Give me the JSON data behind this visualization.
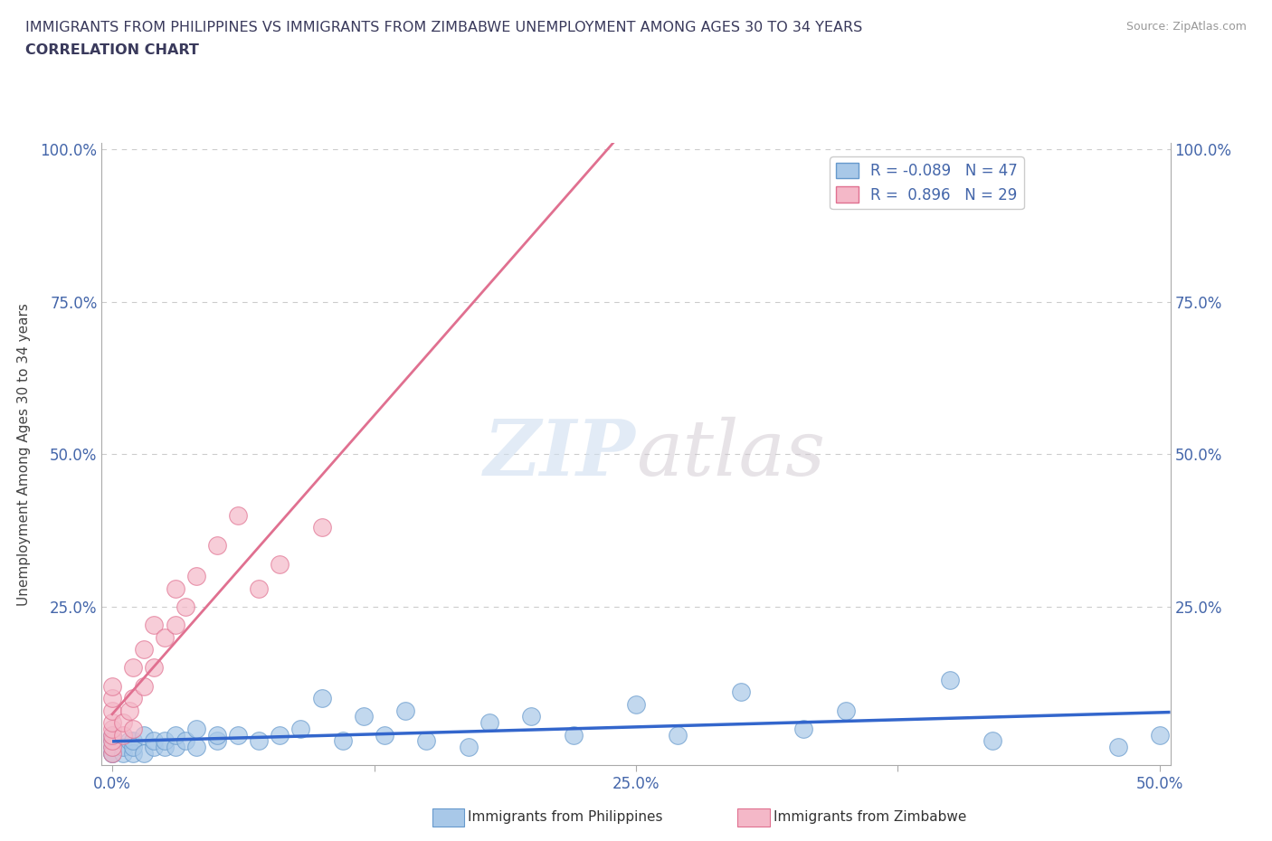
{
  "title_line1": "IMMIGRANTS FROM PHILIPPINES VS IMMIGRANTS FROM ZIMBABWE UNEMPLOYMENT AMONG AGES 30 TO 34 YEARS",
  "title_line2": "CORRELATION CHART",
  "source": "Source: ZipAtlas.com",
  "ylabel": "Unemployment Among Ages 30 to 34 years",
  "xlim": [
    -0.005,
    0.505
  ],
  "ylim": [
    -0.01,
    1.01
  ],
  "xticks": [
    0.0,
    0.125,
    0.25,
    0.375,
    0.5
  ],
  "xticklabels": [
    "0.0%",
    "",
    "25.0%",
    "",
    "50.0%"
  ],
  "yticks": [
    0.0,
    0.25,
    0.5,
    0.75,
    1.0
  ],
  "yticklabels": [
    "",
    "25.0%",
    "50.0%",
    "75.0%",
    "100.0%"
  ],
  "grid_color": "#cccccc",
  "watermark_zip": "ZIP",
  "watermark_atlas": "atlas",
  "phil_color": "#a8c8e8",
  "phil_edge_color": "#6699cc",
  "zimb_color": "#f4b8c8",
  "zimb_edge_color": "#e07090",
  "phil_line_color": "#3366cc",
  "zimb_line_color": "#e07090",
  "phil_R": -0.089,
  "phil_N": 47,
  "zimb_R": 0.896,
  "zimb_N": 29,
  "title_color": "#3a3a5c",
  "axis_color": "#4466aa",
  "phil_scatter_x": [
    0.0,
    0.0,
    0.0,
    0.0,
    0.0,
    0.005,
    0.005,
    0.008,
    0.01,
    0.01,
    0.01,
    0.015,
    0.015,
    0.02,
    0.02,
    0.025,
    0.025,
    0.03,
    0.03,
    0.035,
    0.04,
    0.04,
    0.05,
    0.05,
    0.06,
    0.07,
    0.08,
    0.09,
    0.1,
    0.11,
    0.12,
    0.13,
    0.14,
    0.15,
    0.17,
    0.18,
    0.2,
    0.22,
    0.25,
    0.27,
    0.3,
    0.33,
    0.35,
    0.4,
    0.42,
    0.48,
    0.5
  ],
  "phil_scatter_y": [
    0.01,
    0.01,
    0.02,
    0.03,
    0.04,
    0.01,
    0.02,
    0.03,
    0.01,
    0.02,
    0.03,
    0.01,
    0.04,
    0.02,
    0.03,
    0.02,
    0.03,
    0.02,
    0.04,
    0.03,
    0.02,
    0.05,
    0.03,
    0.04,
    0.04,
    0.03,
    0.04,
    0.05,
    0.1,
    0.03,
    0.07,
    0.04,
    0.08,
    0.03,
    0.02,
    0.06,
    0.07,
    0.04,
    0.09,
    0.04,
    0.11,
    0.05,
    0.08,
    0.13,
    0.03,
    0.02,
    0.04
  ],
  "zimb_scatter_x": [
    0.0,
    0.0,
    0.0,
    0.0,
    0.0,
    0.0,
    0.0,
    0.0,
    0.0,
    0.005,
    0.005,
    0.008,
    0.01,
    0.01,
    0.01,
    0.015,
    0.015,
    0.02,
    0.02,
    0.025,
    0.03,
    0.03,
    0.035,
    0.04,
    0.05,
    0.06,
    0.07,
    0.08,
    0.1
  ],
  "zimb_scatter_y": [
    0.01,
    0.02,
    0.03,
    0.04,
    0.05,
    0.06,
    0.08,
    0.1,
    0.12,
    0.04,
    0.06,
    0.08,
    0.05,
    0.1,
    0.15,
    0.12,
    0.18,
    0.15,
    0.22,
    0.2,
    0.22,
    0.28,
    0.25,
    0.3,
    0.35,
    0.4,
    0.28,
    0.32,
    0.38
  ]
}
